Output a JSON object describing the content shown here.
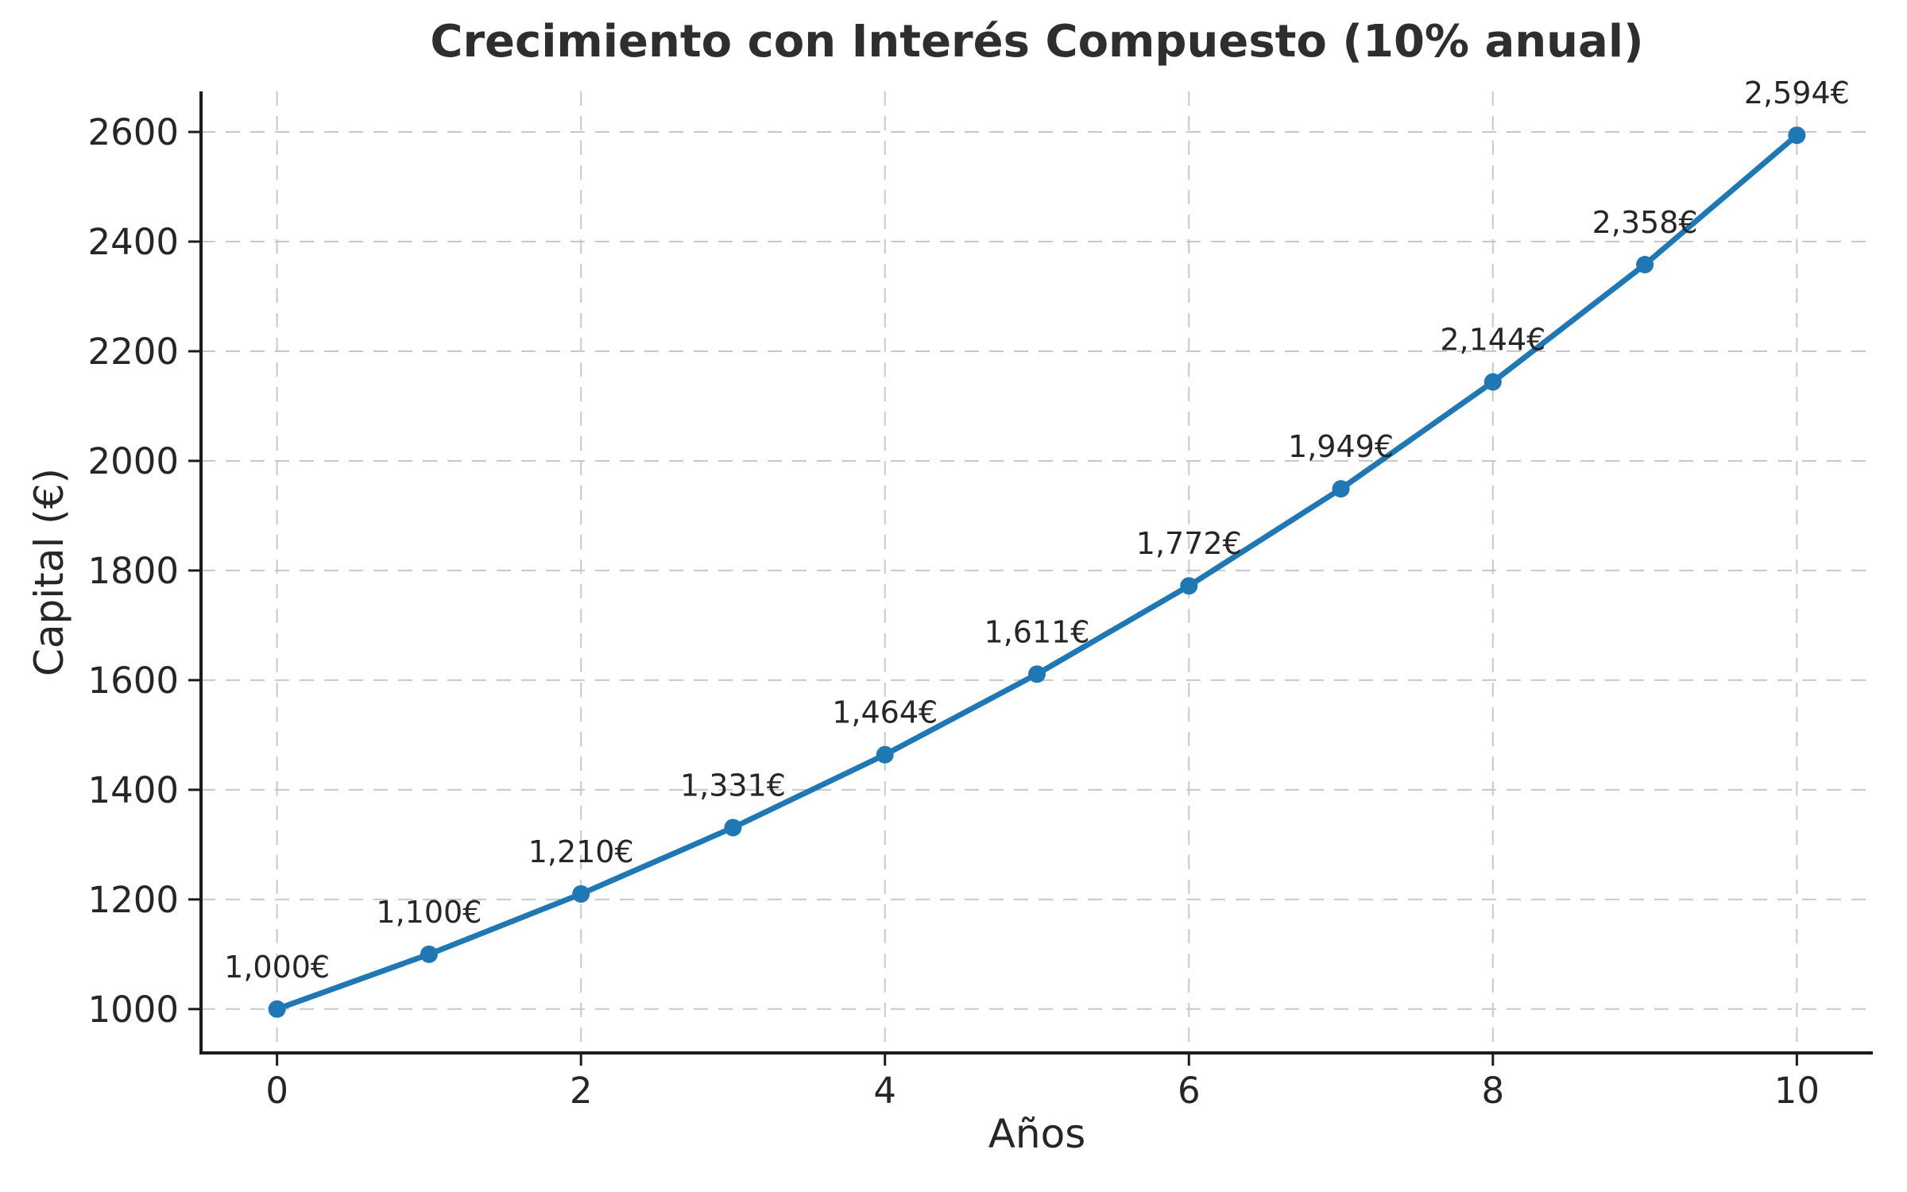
{
  "chart_data": {
    "type": "line",
    "title": "Crecimiento con Interés Compuesto (10% anual)",
    "xlabel": "Años",
    "ylabel": "Capital (€)",
    "x": [
      0,
      1,
      2,
      3,
      4,
      5,
      6,
      7,
      8,
      9,
      10
    ],
    "y": [
      1000,
      1100,
      1210,
      1331,
      1464,
      1611,
      1772,
      1949,
      2144,
      2358,
      2594
    ],
    "point_labels": [
      "1,000€",
      "1,100€",
      "1,210€",
      "1,331€",
      "1,464€",
      "1,611€",
      "1,772€",
      "1,949€",
      "2,144€",
      "2,358€",
      "2,594€"
    ],
    "xticks": {
      "values": [
        0,
        2,
        4,
        6,
        8,
        10
      ],
      "labels": [
        "0",
        "2",
        "4",
        "6",
        "8",
        "10"
      ]
    },
    "yticks": {
      "values": [
        1000,
        1200,
        1400,
        1600,
        1800,
        2000,
        2200,
        2400,
        2600
      ],
      "labels": [
        "1000",
        "1200",
        "1400",
        "1600",
        "1800",
        "2000",
        "2200",
        "2400",
        "2600"
      ]
    },
    "xlim": [
      -0.5,
      10.5
    ],
    "ylim": [
      920,
      2674
    ],
    "grid": true,
    "grid_style": "dashed",
    "legend": null,
    "marker": "circle",
    "colors": {
      "line": "#1f77b4",
      "marker": "#1f77b4",
      "grid": "#c8c8c8",
      "axis": "#1c1c1c",
      "tick_text": "#262626",
      "annotation_text": "#262626",
      "title_text": "#2e2e2e",
      "background": "#ffffff"
    }
  }
}
